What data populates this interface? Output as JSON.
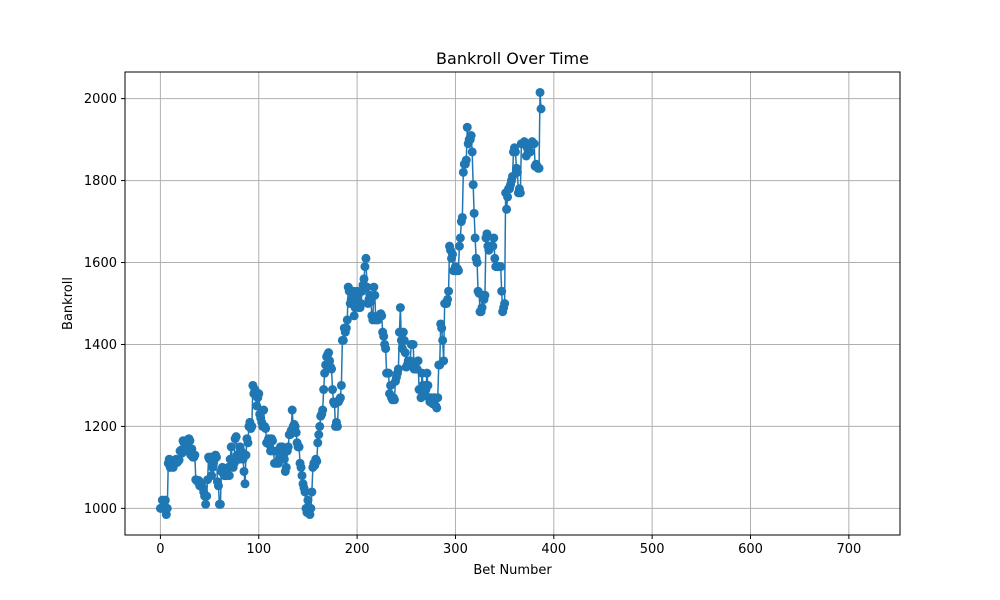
{
  "chart_data": {
    "type": "line",
    "title": "Bankroll Over Time",
    "xlabel": "Bet Number",
    "ylabel": "Bankroll",
    "xlim": [
      -36,
      752
    ],
    "ylim": [
      935,
      2065
    ],
    "x_ticks": [
      0,
      100,
      200,
      300,
      400,
      500,
      600,
      700
    ],
    "y_ticks": [
      1000,
      1200,
      1400,
      1600,
      1800,
      2000
    ],
    "grid": true,
    "marker": "circle",
    "color": "#1f77b4",
    "series": [
      {
        "values": [
          1000,
          1000,
          1020,
          1018,
          1015,
          1020,
          985,
          1000,
          1110,
          1120,
          1100,
          1108,
          1105,
          1100,
          1112,
          1115,
          1120,
          1112,
          1115,
          1118,
          1140,
          1142,
          1135,
          1165,
          1160,
          1155,
          1140,
          1165,
          1168,
          1170,
          1165,
          1130,
          1145,
          1125,
          1125,
          1130,
          1070,
          1068,
          1065,
          1068,
          1055,
          1060,
          1055,
          1050,
          1040,
          1030,
          1010,
          1030,
          1070,
          1125,
          1120,
          1125,
          1080,
          1100,
          1110,
          1120,
          1130,
          1125,
          1065,
          1055,
          1010,
          1010,
          1090,
          1100,
          1085,
          1080,
          1080,
          1080,
          1095,
          1100,
          1080,
          1120,
          1150,
          1120,
          1100,
          1110,
          1170,
          1175,
          1130,
          1120,
          1120,
          1150,
          1140,
          1130,
          1120,
          1090,
          1060,
          1130,
          1170,
          1160,
          1200,
          1210,
          1195,
          1200,
          1300,
          1280,
          1290,
          1275,
          1250,
          1270,
          1280,
          1230,
          1220,
          1210,
          1200,
          1240,
          1200,
          1195,
          1160,
          1160,
          1170,
          1155,
          1140,
          1170,
          1165,
          1140,
          1110,
          1110,
          1140,
          1110,
          1110,
          1120,
          1150,
          1145,
          1150,
          1130,
          1120,
          1090,
          1100,
          1140,
          1150,
          1180,
          1180,
          1190,
          1240,
          1200,
          1205,
          1200,
          1185,
          1160,
          1150,
          1150,
          1110,
          1100,
          1080,
          1060,
          1050,
          1040,
          1000,
          990,
          1020,
          1000,
          985,
          1000,
          1040,
          1100,
          1110,
          1105,
          1120,
          1115,
          1160,
          1180,
          1200,
          1225,
          1230,
          1240,
          1290,
          1330,
          1350,
          1370,
          1375,
          1380,
          1360,
          1345,
          1340,
          1290,
          1260,
          1255,
          1200,
          1210,
          1200,
          1260,
          1265,
          1270,
          1300,
          1410,
          1410,
          1440,
          1430,
          1440,
          1460,
          1540,
          1530,
          1500,
          1510,
          1520,
          1530,
          1470,
          1490,
          1510,
          1530,
          1520,
          1490,
          1490,
          1500,
          1530,
          1545,
          1560,
          1590,
          1610,
          1540,
          1500,
          1510,
          1520,
          1505,
          1470,
          1460,
          1540,
          1520,
          1460,
          1465,
          1460,
          1470,
          1470,
          1475,
          1470,
          1430,
          1420,
          1400,
          1390,
          1330,
          1330,
          1330,
          1280,
          1300,
          1270,
          1265,
          1270,
          1265,
          1310,
          1320,
          1330,
          1340,
          1430,
          1490,
          1410,
          1390,
          1430,
          1410,
          1380,
          1345,
          1350,
          1360,
          1360,
          1360,
          1400,
          1400,
          1400,
          1340,
          1345,
          1340,
          1340,
          1360,
          1290,
          1290,
          1270,
          1330,
          1300,
          1280,
          1300,
          1290,
          1330,
          1300,
          1270,
          1260,
          1270,
          1260,
          1255,
          1270,
          1270,
          1250,
          1245,
          1270,
          1350,
          1350,
          1450,
          1440,
          1410,
          1360,
          1500,
          1500,
          1500,
          1510,
          1530,
          1640,
          1630,
          1610,
          1620,
          1580,
          1580,
          1590,
          1580,
          1585,
          1580,
          1640,
          1660,
          1700,
          1710,
          1820,
          1840,
          1840,
          1850,
          1930,
          1890,
          1900,
          1900,
          1910,
          1870,
          1790,
          1720,
          1660,
          1610,
          1600,
          1530,
          1525,
          1480,
          1480,
          1490,
          1520,
          1510,
          1520,
          1660,
          1670,
          1640,
          1630,
          1640,
          1640,
          1640,
          1640,
          1660,
          1610,
          1590,
          1590,
          1590,
          1590,
          1590,
          1590,
          1530,
          1480,
          1490,
          1500,
          1770,
          1730,
          1760,
          1780,
          1780,
          1790,
          1800,
          1810,
          1870,
          1880,
          1870,
          1830,
          1820,
          1770,
          1780,
          1770,
          1890,
          1890,
          1890,
          1895,
          1890,
          1860,
          1880,
          1870,
          1870,
          1870,
          1890,
          1895,
          1890,
          1890,
          1835,
          1840,
          1835,
          1830,
          1830,
          2015,
          1975
        ]
      }
    ]
  }
}
